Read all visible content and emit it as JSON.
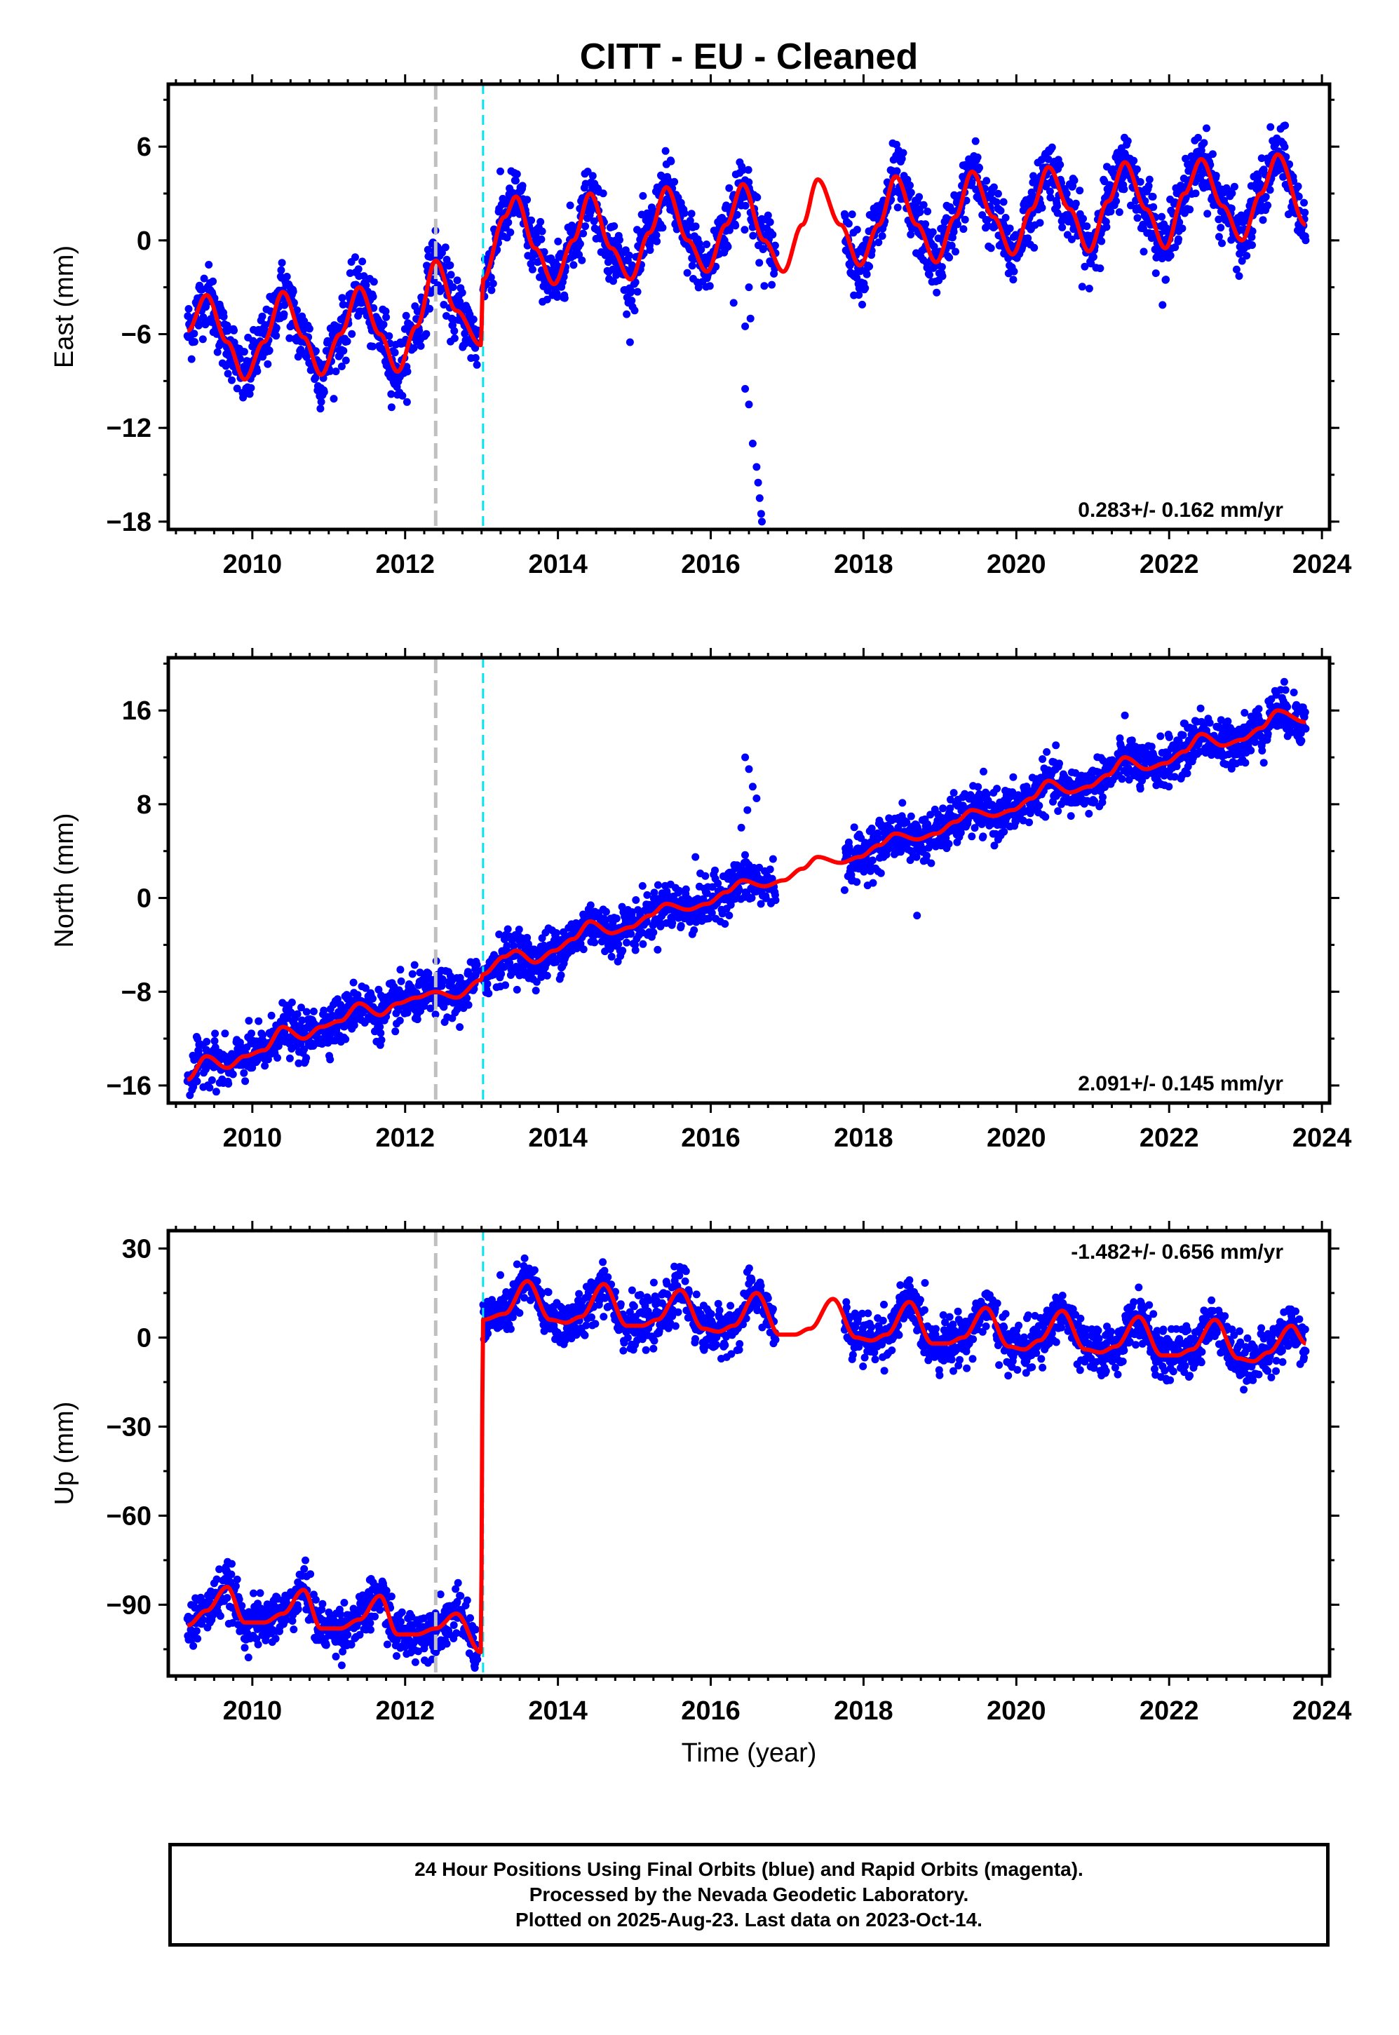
{
  "title": "CITT  - EU - Cleaned",
  "xlabel": "Time (year)",
  "colors": {
    "points": "#0000ff",
    "model": "#ff0000",
    "offset_equipment": "#c0c0c0",
    "offset_other": "#00e5ee"
  },
  "caption": {
    "line1": "24 Hour Positions Using Final Orbits (blue) and Rapid Orbits (magenta).",
    "line2": "Processed by the Nevada Geodetic Laboratory.",
    "line3": "Plotted on 2025-Aug-23. Last data on 2023-Oct-14."
  },
  "chart_data": [
    {
      "type": "scatter",
      "panel": "east",
      "ylabel": "East (mm)",
      "xlim": [
        2008.9,
        2024.1
      ],
      "ylim": [
        -18.5,
        10
      ],
      "xticks": [
        2010,
        2012,
        2014,
        2016,
        2018,
        2020,
        2022,
        2024
      ],
      "yticks": [
        6,
        0,
        -6,
        -12,
        -18
      ],
      "rate_label": "0.283+/- 0.162 mm/yr",
      "rate_position": "bottom-right",
      "offset_lines": [
        2012.4,
        2013.02
      ],
      "grid": false,
      "data_start": 2009.15,
      "data_gap": [
        2016.85,
        2017.75
      ],
      "data_end": 2023.79,
      "series": [
        {
          "kind": "model",
          "x": [
            2009.15,
            2009.4,
            2009.67,
            2009.9,
            2010.15,
            2010.4,
            2010.67,
            2010.9,
            2011.15,
            2011.4,
            2011.67,
            2011.9,
            2012.15,
            2012.4,
            2012.67,
            2012.99,
            2013.02,
            2013.3,
            2013.45,
            2013.7,
            2013.95,
            2014.2,
            2014.42,
            2014.7,
            2014.95,
            2015.2,
            2015.42,
            2015.7,
            2015.95,
            2016.2,
            2016.42,
            2016.7,
            2016.95,
            2017.2,
            2017.4,
            2017.7,
            2017.95,
            2018.2,
            2018.42,
            2018.7,
            2018.95,
            2019.2,
            2019.42,
            2019.7,
            2019.95,
            2020.2,
            2020.42,
            2020.7,
            2020.95,
            2021.2,
            2021.42,
            2021.7,
            2021.95,
            2022.2,
            2022.42,
            2022.7,
            2022.95,
            2023.2,
            2023.42,
            2023.79
          ],
          "y": [
            -5.8,
            -3.5,
            -6.5,
            -8.9,
            -6.5,
            -3.3,
            -6.2,
            -8.6,
            -6.0,
            -3.0,
            -6.0,
            -8.4,
            -5.5,
            -1.3,
            -4.5,
            -6.7,
            -2.5,
            1.5,
            2.8,
            -0.5,
            -2.8,
            0.0,
            3.0,
            -0.5,
            -2.5,
            0.5,
            3.4,
            0.0,
            -2.0,
            1.0,
            3.6,
            0.0,
            -2.0,
            1.0,
            3.9,
            1.0,
            -1.6,
            1.0,
            4.1,
            1.0,
            -1.4,
            1.5,
            4.4,
            1.5,
            -0.9,
            2.0,
            4.7,
            2.0,
            -0.7,
            2.5,
            5.0,
            2.0,
            -0.5,
            3.0,
            5.2,
            2.2,
            0.0,
            3.0,
            5.5,
            1.0
          ]
        }
      ],
      "noise": 1.0,
      "outliers": [
        [
          2016.45,
          -9.5
        ],
        [
          2016.5,
          -10.5
        ],
        [
          2016.55,
          -13.0
        ],
        [
          2016.6,
          -14.5
        ],
        [
          2016.62,
          -15.5
        ],
        [
          2016.64,
          -16.5
        ],
        [
          2016.66,
          -17.5
        ],
        [
          2016.67,
          -18.0
        ],
        [
          2016.38,
          5.0
        ],
        [
          2016.42,
          4.5
        ],
        [
          2016.5,
          -3.0
        ],
        [
          2016.52,
          -5.0
        ],
        [
          2016.45,
          -5.5
        ],
        [
          2016.3,
          -4.0
        ]
      ]
    },
    {
      "type": "scatter",
      "panel": "north",
      "ylabel": "North (mm)",
      "xlim": [
        2008.9,
        2024.1
      ],
      "ylim": [
        -17.5,
        20.5
      ],
      "xticks": [
        2010,
        2012,
        2014,
        2016,
        2018,
        2020,
        2022,
        2024
      ],
      "yticks": [
        16,
        8,
        0,
        -8,
        -16
      ],
      "rate_label": "2.091+/- 0.145 mm/yr",
      "rate_position": "bottom-right",
      "offset_lines": [
        2012.4,
        2013.02
      ],
      "grid": false,
      "data_start": 2009.15,
      "data_gap": [
        2016.85,
        2017.75
      ],
      "data_end": 2023.79,
      "series": [
        {
          "kind": "model",
          "x": [
            2009.15,
            2009.4,
            2009.67,
            2009.9,
            2010.15,
            2010.4,
            2010.67,
            2010.9,
            2011.15,
            2011.4,
            2011.67,
            2011.9,
            2012.15,
            2012.4,
            2012.67,
            2012.99,
            2013.02,
            2013.3,
            2013.45,
            2013.7,
            2013.95,
            2014.2,
            2014.42,
            2014.7,
            2014.95,
            2015.2,
            2015.42,
            2015.7,
            2015.95,
            2016.2,
            2016.42,
            2016.7,
            2016.95,
            2017.2,
            2017.4,
            2017.7,
            2017.95,
            2018.2,
            2018.42,
            2018.7,
            2018.95,
            2019.2,
            2019.42,
            2019.7,
            2019.95,
            2020.2,
            2020.42,
            2020.7,
            2020.95,
            2021.2,
            2021.42,
            2021.7,
            2021.95,
            2022.2,
            2022.42,
            2022.7,
            2022.95,
            2023.2,
            2023.42,
            2023.79
          ],
          "y": [
            -15.5,
            -13.5,
            -14.5,
            -13.5,
            -13.0,
            -11.0,
            -12.0,
            -11.0,
            -10.5,
            -9.0,
            -10.0,
            -9.0,
            -8.5,
            -8.0,
            -8.5,
            -7.0,
            -6.5,
            -5.0,
            -4.5,
            -5.5,
            -4.5,
            -3.5,
            -2.0,
            -3.0,
            -2.5,
            -1.5,
            -0.5,
            -1.0,
            -0.5,
            0.5,
            1.5,
            1.0,
            1.5,
            2.5,
            3.5,
            3.0,
            3.5,
            4.5,
            5.5,
            5.0,
            5.5,
            6.5,
            7.5,
            7.0,
            7.5,
            8.5,
            10.0,
            9.0,
            9.5,
            10.5,
            12.0,
            11.0,
            11.5,
            12.5,
            14.0,
            13.0,
            13.5,
            14.5,
            16.0,
            15.0
          ]
        }
      ],
      "noise": 1.0,
      "outliers": [
        [
          2016.45,
          12.0
        ],
        [
          2016.5,
          11.0
        ],
        [
          2016.55,
          9.5
        ],
        [
          2016.6,
          8.5
        ],
        [
          2016.48,
          7.5
        ],
        [
          2016.4,
          6.0
        ],
        [
          2015.8,
          3.5
        ],
        [
          2018.7,
          -1.5
        ]
      ]
    },
    {
      "type": "scatter",
      "panel": "up",
      "ylabel": "Up (mm)",
      "xlim": [
        2008.9,
        2024.1
      ],
      "ylim": [
        -114,
        36
      ],
      "xticks": [
        2010,
        2012,
        2014,
        2016,
        2018,
        2020,
        2022,
        2024
      ],
      "yticks": [
        30,
        0,
        -30,
        -60,
        -90
      ],
      "rate_label": "-1.482+/- 0.656 mm/yr",
      "rate_position": "top-right",
      "offset_lines": [
        2012.4,
        2013.02
      ],
      "grid": false,
      "data_start": 2009.15,
      "data_gap": [
        2016.85,
        2017.75
      ],
      "data_end": 2023.79,
      "series": [
        {
          "kind": "model",
          "x": [
            2009.15,
            2009.4,
            2009.67,
            2009.9,
            2010.15,
            2010.4,
            2010.67,
            2010.9,
            2011.15,
            2011.4,
            2011.67,
            2011.9,
            2012.15,
            2012.4,
            2012.67,
            2012.99,
            2013.02,
            2013.3,
            2013.6,
            2013.9,
            2014.1,
            2014.3,
            2014.6,
            2014.9,
            2015.1,
            2015.3,
            2015.6,
            2015.9,
            2016.1,
            2016.3,
            2016.6,
            2016.9,
            2017.1,
            2017.3,
            2017.6,
            2017.9,
            2018.1,
            2018.3,
            2018.6,
            2018.9,
            2019.1,
            2019.3,
            2019.6,
            2019.9,
            2020.1,
            2020.3,
            2020.6,
            2020.9,
            2021.1,
            2021.3,
            2021.6,
            2021.9,
            2022.1,
            2022.3,
            2022.6,
            2022.9,
            2023.1,
            2023.3,
            2023.6,
            2023.79
          ],
          "y": [
            -97.0,
            -92.0,
            -84.0,
            -96.0,
            -96.0,
            -93.0,
            -85.0,
            -98.0,
            -98.0,
            -95.0,
            -87.0,
            -100.0,
            -100.0,
            -98.0,
            -93.0,
            -106.0,
            6.0,
            8.0,
            19.0,
            6.0,
            5.0,
            7.0,
            18.0,
            4.0,
            4.0,
            6.0,
            16.0,
            3.0,
            2.0,
            4.0,
            15.0,
            1.0,
            1.0,
            3.0,
            13.0,
            0.0,
            -1.0,
            1.0,
            12.0,
            -2.0,
            -2.0,
            0.0,
            10.0,
            -3.0,
            -4.0,
            -1.0,
            9.0,
            -4.0,
            -5.0,
            -3.0,
            7.0,
            -6.0,
            -6.0,
            -4.0,
            6.0,
            -7.0,
            -8.0,
            -5.0,
            4.0,
            -2.0
          ]
        }
      ],
      "noise": 4.0,
      "outliers": []
    }
  ]
}
